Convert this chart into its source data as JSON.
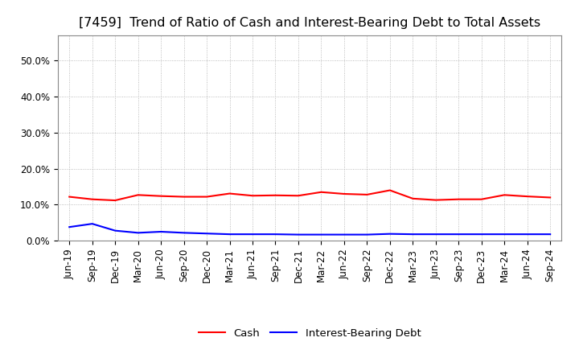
{
  "title": "[7459]  Trend of Ratio of Cash and Interest-Bearing Debt to Total Assets",
  "x_labels": [
    "Jun-19",
    "Sep-19",
    "Dec-19",
    "Mar-20",
    "Jun-20",
    "Sep-20",
    "Dec-20",
    "Mar-21",
    "Jun-21",
    "Sep-21",
    "Dec-21",
    "Mar-22",
    "Jun-22",
    "Sep-22",
    "Dec-22",
    "Mar-23",
    "Jun-23",
    "Sep-23",
    "Dec-23",
    "Mar-24",
    "Jun-24",
    "Sep-24"
  ],
  "cash": [
    12.2,
    11.5,
    11.2,
    12.7,
    12.4,
    12.2,
    12.2,
    13.1,
    12.5,
    12.6,
    12.5,
    13.5,
    13.0,
    12.8,
    14.0,
    11.7,
    11.3,
    11.5,
    11.5,
    12.7,
    12.3,
    12.0
  ],
  "debt": [
    3.8,
    4.7,
    2.8,
    2.2,
    2.5,
    2.2,
    2.0,
    1.8,
    1.8,
    1.8,
    1.7,
    1.7,
    1.7,
    1.7,
    1.9,
    1.8,
    1.8,
    1.8,
    1.8,
    1.8,
    1.8,
    1.8
  ],
  "cash_color": "#ff0000",
  "debt_color": "#0000ff",
  "ylim_min": 0,
  "ylim_max": 57,
  "yticks": [
    0,
    10,
    20,
    30,
    40,
    50
  ],
  "ytick_labels": [
    "0.0%",
    "10.0%",
    "20.0%",
    "30.0%",
    "40.0%",
    "50.0%"
  ],
  "background_color": "#ffffff",
  "plot_bg_color": "#ffffff",
  "grid_color": "#aaaaaa",
  "legend_cash": "Cash",
  "legend_debt": "Interest-Bearing Debt",
  "title_fontsize": 11.5,
  "line_width": 1.5,
  "tick_fontsize": 8.5,
  "legend_fontsize": 9.5
}
